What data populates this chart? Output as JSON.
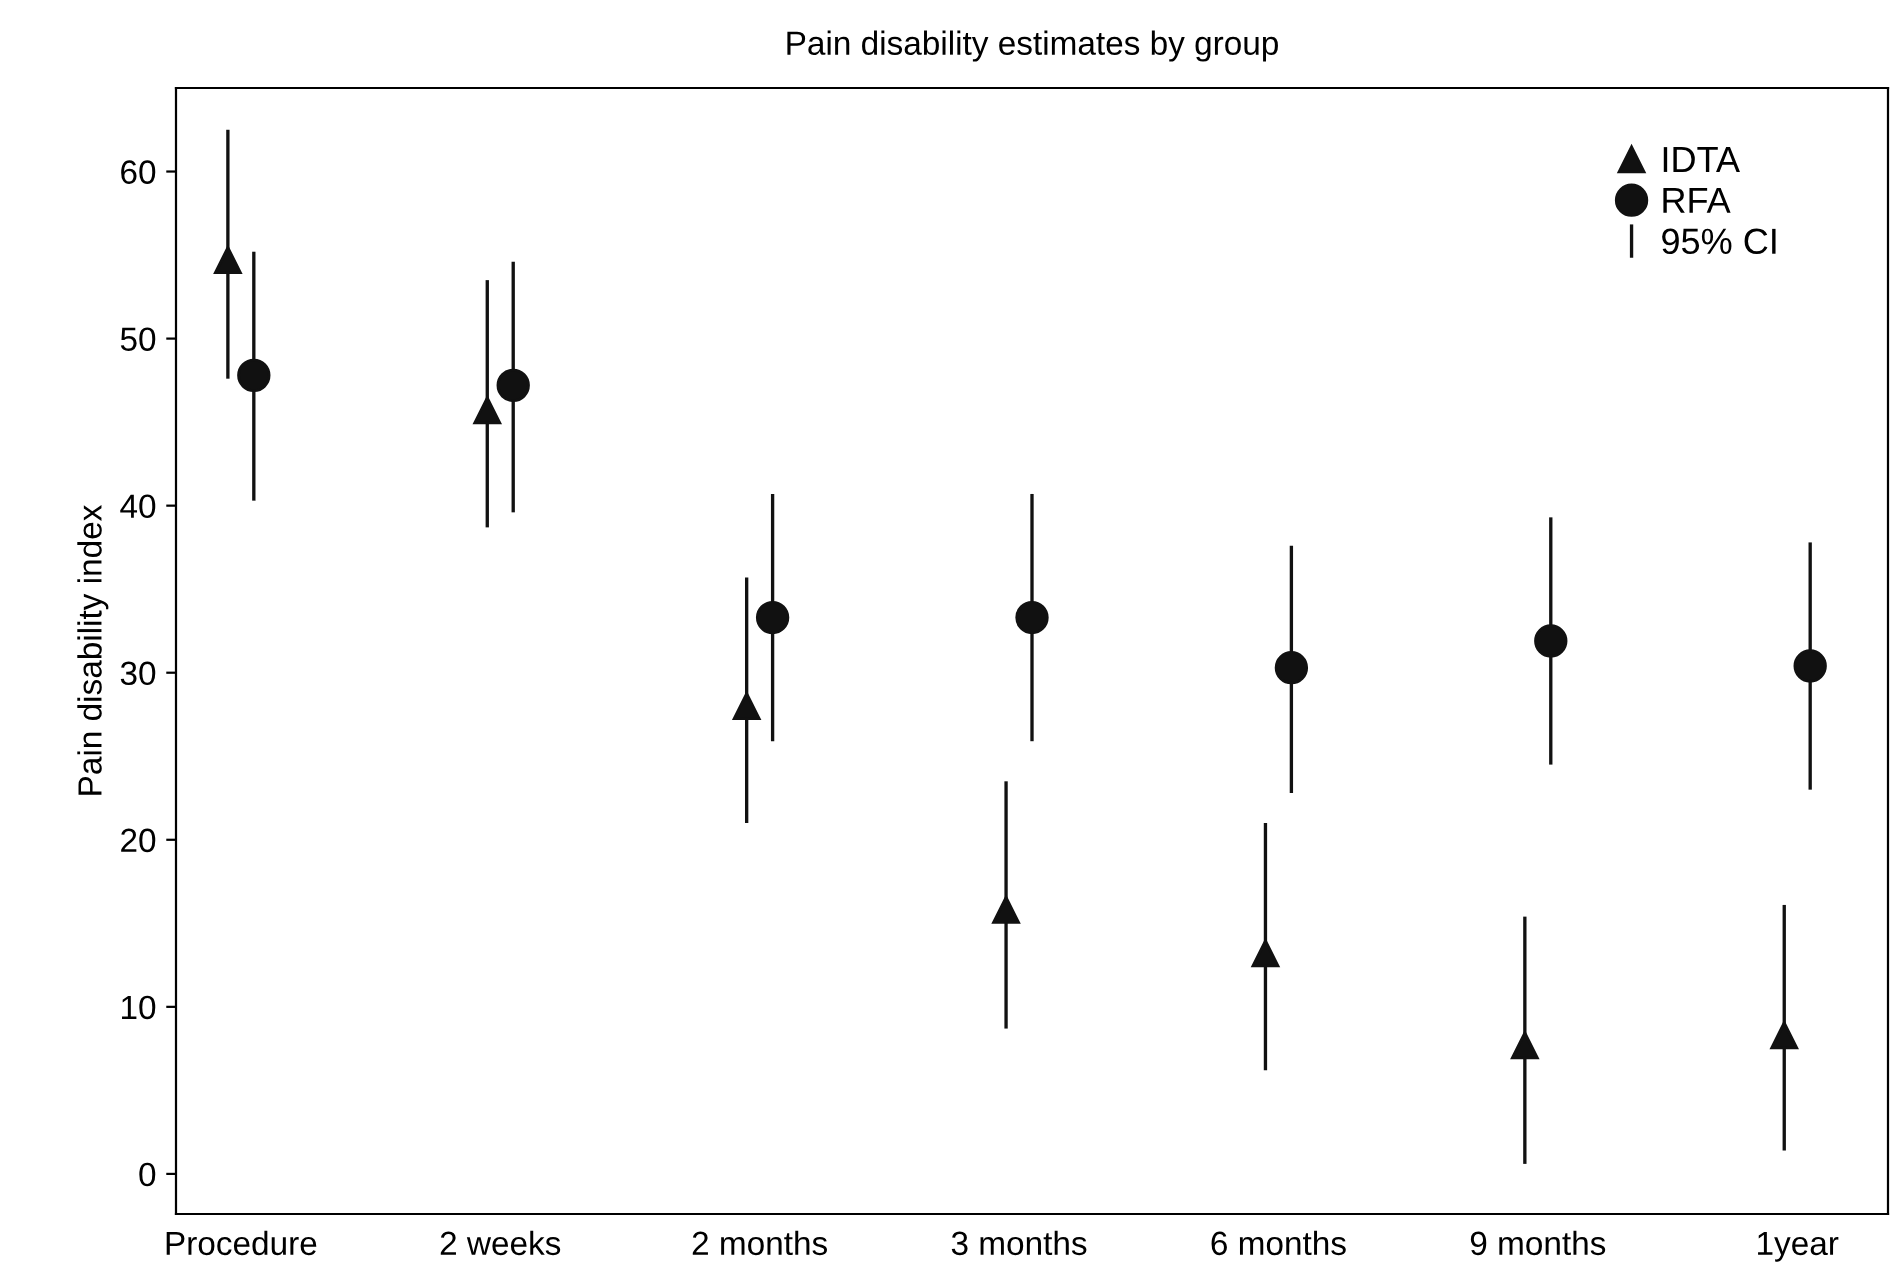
{
  "chart_data": {
    "type": "scatter",
    "title": "Pain disability estimates by group",
    "ylabel": "Pain disability index",
    "categories": [
      "Procedure",
      "2 weeks",
      "2 months",
      "3 months",
      "6 months",
      "9 months",
      "1year"
    ],
    "series": [
      {
        "name": "IDTA",
        "color": "#111111",
        "marker": "triangle",
        "values": [
          54.7,
          45.7,
          28,
          15.8,
          13.2,
          7.7,
          8.3
        ],
        "errors": [
          [
            47.6,
            62.5
          ],
          [
            38.7,
            53.5
          ],
          [
            21,
            35.7
          ],
          [
            8.7,
            23.5
          ],
          [
            6.2,
            21
          ],
          [
            0.6,
            15.4
          ],
          [
            1.4,
            16.1
          ]
        ]
      },
      {
        "name": "RFA",
        "color": "#111111",
        "marker": "circle",
        "values": [
          47.8,
          47.2,
          33.3,
          33.3,
          30.3,
          31.9,
          30.4
        ],
        "errors": [
          [
            40.3,
            55.2
          ],
          [
            39.6,
            54.6
          ],
          [
            25.9,
            40.7
          ],
          [
            25.9,
            40.7
          ],
          [
            22.8,
            37.6
          ],
          [
            24.5,
            39.3
          ],
          [
            23,
            37.8
          ]
        ]
      }
    ],
    "annotations": [
      "95% CI"
    ],
    "ylim": [
      -2.4,
      65
    ],
    "yticks": [
      0,
      10,
      20,
      30,
      40,
      50,
      60
    ],
    "grid": false,
    "legend": "top right"
  }
}
